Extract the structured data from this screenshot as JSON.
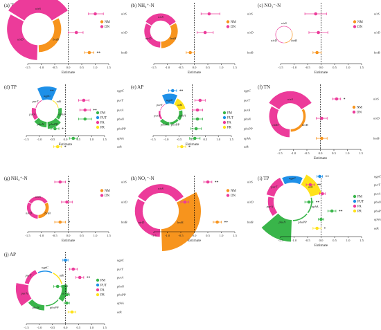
{
  "colors": {
    "NM": "#F7941D",
    "DN": "#EC3B9A",
    "PM": "#39B54A",
    "PUT": "#1E90E8",
    "PA": "#EC3B9A",
    "PR": "#FFE21A"
  },
  "chart_data": [
    {
      "type": "scatter",
      "panel": "a",
      "title": "(a) TN",
      "xlabel": "Estimate",
      "xlim": [
        -1.5,
        1.5
      ],
      "xticks": [
        "-1.5",
        "-1.0",
        "-0.5",
        "0.0",
        "0.5",
        "1.0",
        "1.5"
      ],
      "genes": [
        "nirS",
        "nirD",
        "betB"
      ],
      "legend": [
        {
          "name": "NM",
          "color": "#F7941D"
        },
        {
          "name": "DN",
          "color": "#EC3B9A"
        }
      ],
      "points": [
        {
          "gene": "nirS",
          "group": "DN",
          "est": 1.0,
          "lo": 0.75,
          "hi": 1.3,
          "sig": ""
        },
        {
          "gene": "nirD",
          "group": "DN",
          "est": 0.3,
          "lo": 0.0,
          "hi": 0.55,
          "sig": ""
        },
        {
          "gene": "betB",
          "group": "NM",
          "est": 0.78,
          "lo": 0.6,
          "hi": 0.95,
          "sig": "**"
        }
      ],
      "ring": [
        {
          "gene": "nirS",
          "group": "DN",
          "value": 0.95
        },
        {
          "gene": "betB",
          "group": "NM",
          "value": 0.35
        },
        {
          "gene": "nirD",
          "group": "DN",
          "value": 0.75
        }
      ]
    },
    {
      "type": "scatter",
      "panel": "b",
      "title": "(b) NH₄⁺-N",
      "xlabel": "Estimate",
      "xlim": [
        -1.5,
        1.5
      ],
      "xticks": [
        "-1.5",
        "-1.0",
        "-0.5",
        "0.0",
        "0.5",
        "1.0",
        "1.5"
      ],
      "genes": [
        "nirS",
        "nirD",
        "betB"
      ],
      "legend": [
        {
          "name": "NM",
          "color": "#F7941D"
        },
        {
          "name": "DN",
          "color": "#EC3B9A"
        }
      ],
      "points": [
        {
          "gene": "nirS",
          "group": "DN",
          "est": 0.55,
          "lo": 0.25,
          "hi": 0.95,
          "sig": ""
        },
        {
          "gene": "nirD",
          "group": "DN",
          "est": 0.4,
          "lo": 0.1,
          "hi": 0.7,
          "sig": ""
        },
        {
          "gene": "betB",
          "group": "NM",
          "est": -0.15,
          "lo": -0.3,
          "hi": 0.0,
          "sig": ""
        }
      ],
      "ring": [
        {
          "gene": "nirS",
          "group": "DN",
          "value": 0.55
        },
        {
          "gene": "betB",
          "group": "NM",
          "value": 0.5
        },
        {
          "gene": "nirD",
          "group": "DN",
          "value": 0.45
        }
      ]
    },
    {
      "type": "scatter",
      "panel": "c",
      "title": "(c) NO₃⁻-N",
      "xlabel": "Estimate",
      "xlim": [
        -1.5,
        1.5
      ],
      "xticks": [
        "-1.5",
        "-1.0",
        "-0.5",
        "0.0",
        "0.5",
        "1.0",
        "1.5"
      ],
      "genes": [
        "nirS",
        "nirD",
        "betB"
      ],
      "legend": [
        {
          "name": "NM",
          "color": "#F7941D"
        },
        {
          "name": "DN",
          "color": "#EC3B9A"
        }
      ],
      "points": [
        {
          "gene": "nirS",
          "group": "DN",
          "est": -0.2,
          "lo": -0.6,
          "hi": 0.2,
          "sig": ""
        },
        {
          "gene": "nirD",
          "group": "DN",
          "est": -0.1,
          "lo": -0.45,
          "hi": 0.25,
          "sig": ""
        },
        {
          "gene": "betB",
          "group": "NM",
          "est": -0.15,
          "lo": -0.3,
          "hi": 0.0,
          "sig": ""
        }
      ],
      "ring": [
        {
          "gene": "nirS",
          "group": "DN",
          "value": 0.05
        },
        {
          "gene": "betB",
          "group": "NM",
          "value": 0.05
        },
        {
          "gene": "nirD",
          "group": "DN",
          "value": 0.05
        }
      ]
    },
    {
      "type": "scatter",
      "panel": "d",
      "title": "(d) TP",
      "xlabel": "Estimate",
      "xlim": [
        -1.5,
        1.5
      ],
      "xticks": [
        "-1.5",
        "-1.0",
        "-0.5",
        "0.0",
        "0.5",
        "1.0",
        "1.5"
      ],
      "genes": [
        "ugpC",
        "purT",
        "purA",
        "phoN",
        "phoPP",
        "aphA",
        "adk"
      ],
      "legend": [
        {
          "name": "PM",
          "color": "#39B54A"
        },
        {
          "name": "PUT",
          "color": "#1E90E8"
        },
        {
          "name": "PA",
          "color": "#EC3B9A"
        },
        {
          "name": "PR",
          "color": "#FFE21A"
        }
      ],
      "points": [
        {
          "gene": "ugpC",
          "group": "PUT",
          "est": -0.85,
          "lo": -1.0,
          "hi": -0.7,
          "sig": "**"
        },
        {
          "gene": "purT",
          "group": "PA",
          "est": 0.7,
          "lo": 0.5,
          "hi": 0.9,
          "sig": ""
        },
        {
          "gene": "purA",
          "group": "PA",
          "est": 0.75,
          "lo": 0.55,
          "hi": 0.95,
          "sig": "**"
        },
        {
          "gene": "phoN",
          "group": "PM",
          "est": 0.75,
          "lo": 0.5,
          "hi": 1.0,
          "sig": ""
        },
        {
          "gene": "phoPP",
          "group": "PM",
          "est": -0.4,
          "lo": -0.55,
          "hi": -0.25,
          "sig": "*"
        },
        {
          "gene": "aphA",
          "group": "PM",
          "est": 0.3,
          "lo": 0.15,
          "hi": 0.45,
          "sig": ""
        },
        {
          "gene": "adk",
          "group": "PR",
          "est": -0.3,
          "lo": -0.45,
          "hi": -0.15,
          "sig": "*"
        }
      ],
      "ring": [
        {
          "gene": "ugpC",
          "group": "PUT",
          "value": 0.95
        },
        {
          "gene": "adk",
          "group": "PR",
          "value": 0.05
        },
        {
          "gene": "aphA",
          "group": "PM",
          "value": 0.25
        },
        {
          "gene": "phoPP",
          "group": "PM",
          "value": 0.5
        },
        {
          "gene": "phoN",
          "group": "PM",
          "value": 0.4
        },
        {
          "gene": "purA",
          "group": "PA",
          "value": 0.3
        },
        {
          "gene": "purT",
          "group": "PA",
          "value": 0.05
        }
      ]
    },
    {
      "type": "scatter",
      "panel": "e",
      "title": "(e) AP",
      "xlabel": "Estimate",
      "xlim": [
        -1.5,
        1.5
      ],
      "xticks": [
        "-1.5",
        "-1.0",
        "-0.5",
        "0.0",
        "0.5",
        "1.0",
        "1.5"
      ],
      "genes": [
        "ugpC",
        "purT",
        "purA",
        "phoN",
        "phoPP",
        "aphA",
        "adk"
      ],
      "legend": [
        {
          "name": "PM",
          "color": "#39B54A"
        },
        {
          "name": "PUT",
          "color": "#1E90E8"
        },
        {
          "name": "PA",
          "color": "#EC3B9A"
        },
        {
          "name": "PR",
          "color": "#FFE21A"
        }
      ],
      "points": [
        {
          "gene": "ugpC",
          "group": "PUT",
          "est": -0.75,
          "lo": -0.9,
          "hi": -0.6,
          "sig": "**"
        },
        {
          "gene": "purT",
          "group": "PA",
          "est": 0.3,
          "lo": 0.1,
          "hi": 0.5,
          "sig": ""
        },
        {
          "gene": "purA",
          "group": "PA",
          "est": 0.2,
          "lo": 0.0,
          "hi": 0.4,
          "sig": ""
        },
        {
          "gene": "phoN",
          "group": "PM",
          "est": 0.2,
          "lo": 0.0,
          "hi": 0.4,
          "sig": ""
        },
        {
          "gene": "phoPP",
          "group": "PM",
          "est": 0.15,
          "lo": -0.05,
          "hi": 0.35,
          "sig": ""
        },
        {
          "gene": "aphA",
          "group": "PM",
          "est": 0.1,
          "lo": -0.1,
          "hi": 0.3,
          "sig": ""
        },
        {
          "gene": "adk",
          "group": "PR",
          "est": -0.4,
          "lo": -0.55,
          "hi": -0.25,
          "sig": "*"
        }
      ],
      "ring": [
        {
          "gene": "ugpC",
          "group": "PUT",
          "value": 0.85
        },
        {
          "gene": "adk",
          "group": "PR",
          "value": 0.6
        },
        {
          "gene": "aphA",
          "group": "PM",
          "value": 0.3
        },
        {
          "gene": "phoPP",
          "group": "PM",
          "value": 0.2
        },
        {
          "gene": "phoN",
          "group": "PM",
          "value": 0.3
        },
        {
          "gene": "purA",
          "group": "PA",
          "value": 0.15
        },
        {
          "gene": "purT",
          "group": "PA",
          "value": 0.05
        }
      ]
    },
    {
      "type": "scatter",
      "panel": "f",
      "title": "(f) TN",
      "xlabel": "Estimate",
      "xlim": [
        -1.5,
        1.5
      ],
      "xticks": [
        "-1.5",
        "-1.0",
        "-0.5",
        "0.0",
        "0.5",
        "1.0",
        "1.5"
      ],
      "genes": [
        "nirS",
        "nirD",
        "betB"
      ],
      "legend": [
        {
          "name": "NM",
          "color": "#F7941D"
        },
        {
          "name": "DN",
          "color": "#EC3B9A"
        }
      ],
      "points": [
        {
          "gene": "nirS",
          "group": "DN",
          "est": 0.6,
          "lo": 0.45,
          "hi": 0.75,
          "sig": "*"
        },
        {
          "gene": "nirD",
          "group": "DN",
          "est": 0.05,
          "lo": -0.15,
          "hi": 0.25,
          "sig": ""
        },
        {
          "gene": "betB",
          "group": "NM",
          "est": 0.05,
          "lo": -0.15,
          "hi": 0.25,
          "sig": ""
        }
      ],
      "ring": [
        {
          "gene": "nirS",
          "group": "DN",
          "value": 0.75
        },
        {
          "gene": "betB",
          "group": "NM",
          "value": 0.15
        },
        {
          "gene": "nirD",
          "group": "DN",
          "value": 0.5
        }
      ]
    },
    {
      "type": "scatter",
      "panel": "g",
      "title": "(g) NH₄⁺-N",
      "xlabel": "Estimate",
      "xlim": [
        -1.5,
        1.5
      ],
      "xticks": [
        "-1.5",
        "-1.0",
        "-0.5",
        "0.0",
        "0.5",
        "1.0",
        "1.5"
      ],
      "genes": [
        "nirS",
        "nirD",
        "betB"
      ],
      "legend": [
        {
          "name": "NM",
          "color": "#F7941D"
        },
        {
          "name": "DN",
          "color": "#EC3B9A"
        }
      ],
      "points": [
        {
          "gene": "nirS",
          "group": "DN",
          "est": -0.3,
          "lo": -0.5,
          "hi": -0.1,
          "sig": "*"
        },
        {
          "gene": "nirD",
          "group": "DN",
          "est": -0.05,
          "lo": -0.25,
          "hi": 0.15,
          "sig": ""
        },
        {
          "gene": "betB",
          "group": "NM",
          "est": -0.3,
          "lo": -0.5,
          "hi": -0.1,
          "sig": "*"
        }
      ],
      "ring": [
        {
          "gene": "nirS",
          "group": "DN",
          "value": 0.4
        },
        {
          "gene": "betB",
          "group": "NM",
          "value": 0.35
        },
        {
          "gene": "nirD",
          "group": "DN",
          "value": 0.4
        }
      ]
    },
    {
      "type": "scatter",
      "panel": "h",
      "title": "(h) NO₃⁻-N",
      "xlabel": "Estimate",
      "xlim": [
        -1.5,
        1.5
      ],
      "xticks": [
        "-1.5",
        "-1.0",
        "-0.5",
        "0.0",
        "0.5",
        "1.0",
        "1.5"
      ],
      "genes": [
        "nirS",
        "nirD",
        "betB"
      ],
      "legend": [
        {
          "name": "NM",
          "color": "#F7941D"
        },
        {
          "name": "DN",
          "color": "#EC3B9A"
        }
      ],
      "points": [
        {
          "gene": "nirS",
          "group": "DN",
          "est": 0.5,
          "lo": 0.35,
          "hi": 0.65,
          "sig": "**"
        },
        {
          "gene": "nirD",
          "group": "DN",
          "est": -0.35,
          "lo": -0.5,
          "hi": -0.2,
          "sig": ""
        },
        {
          "gene": "betB",
          "group": "NM",
          "est": 0.85,
          "lo": 0.7,
          "hi": 1.0,
          "sig": "**"
        }
      ],
      "ring": [
        {
          "gene": "nirS",
          "group": "DN",
          "value": 0.4
        },
        {
          "gene": "betB",
          "group": "NM",
          "value": 1.0
        },
        {
          "gene": "nirD",
          "group": "DN",
          "value": 0.35
        }
      ]
    },
    {
      "type": "scatter",
      "panel": "i",
      "title": "(i) TP",
      "xlabel": "Estimate",
      "xlim": [
        -1.5,
        1.5
      ],
      "xticks": [
        "-1.5",
        "-1.0",
        "-0.5",
        "0.0",
        "0.5",
        "1.0",
        "1.5"
      ],
      "genes": [
        "ugpC",
        "purT",
        "purA",
        "phoN",
        "phoPP",
        "aphA",
        "adk"
      ],
      "legend": [
        {
          "name": "PM",
          "color": "#39B54A"
        },
        {
          "name": "PUT",
          "color": "#1E90E8"
        },
        {
          "name": "PA",
          "color": "#EC3B9A"
        },
        {
          "name": "PR",
          "color": "#FFE21A"
        }
      ],
      "points": [
        {
          "gene": "ugpC",
          "group": "PUT",
          "est": -0.05,
          "lo": -0.15,
          "hi": 0.05,
          "sig": "**"
        },
        {
          "gene": "purT",
          "group": "PA",
          "est": -0.4,
          "lo": -0.55,
          "hi": -0.25,
          "sig": "**"
        },
        {
          "gene": "purA",
          "group": "PA",
          "est": 0.05,
          "lo": -0.05,
          "hi": 0.15,
          "sig": ""
        },
        {
          "gene": "phoN",
          "group": "PM",
          "est": -0.45,
          "lo": -0.6,
          "hi": -0.3,
          "sig": "**"
        },
        {
          "gene": "phoPP",
          "group": "PM",
          "est": 0.4,
          "lo": 0.25,
          "hi": 0.55,
          "sig": "**"
        },
        {
          "gene": "aphA",
          "group": "PM",
          "est": 0.0,
          "lo": -0.1,
          "hi": 0.1,
          "sig": ""
        },
        {
          "gene": "adk",
          "group": "PR",
          "est": -0.15,
          "lo": -0.3,
          "hi": 0.0,
          "sig": "*"
        }
      ],
      "ring": [
        {
          "gene": "ugpC",
          "group": "PUT",
          "value": 0.3
        },
        {
          "gene": "adk",
          "group": "PR",
          "value": 0.5
        },
        {
          "gene": "aphA",
          "group": "PM",
          "value": 0.05
        },
        {
          "gene": "phoPP",
          "group": "PM",
          "value": 0.05
        },
        {
          "gene": "phoN",
          "group": "PM",
          "value": 0.95
        },
        {
          "gene": "purA",
          "group": "PA",
          "value": 0.25
        },
        {
          "gene": "purT",
          "group": "PA",
          "value": 0.35
        }
      ]
    },
    {
      "type": "scatter",
      "panel": "j",
      "title": "(j) AP",
      "xlabel": "Estimate",
      "xlim": [
        -1.5,
        1.5
      ],
      "xticks": [
        "-1.5",
        "-1.0",
        "-0.5",
        "0.0",
        "0.5",
        "1.0",
        "1.5"
      ],
      "genes": [
        "ugpC",
        "purT",
        "purA",
        "phoN",
        "phoPP",
        "aphA",
        "adk"
      ],
      "legend": [
        {
          "name": "PM",
          "color": "#39B54A"
        },
        {
          "name": "PUT",
          "color": "#1E90E8"
        },
        {
          "name": "PA",
          "color": "#EC3B9A"
        },
        {
          "name": "PR",
          "color": "#FFE21A"
        }
      ],
      "points": [
        {
          "gene": "ugpC",
          "group": "PUT",
          "est": 0.0,
          "lo": -0.1,
          "hi": 0.1,
          "sig": ""
        },
        {
          "gene": "purT",
          "group": "PA",
          "est": 0.3,
          "lo": 0.15,
          "hi": 0.45,
          "sig": ""
        },
        {
          "gene": "purA",
          "group": "PA",
          "est": 0.55,
          "lo": 0.4,
          "hi": 0.7,
          "sig": "**"
        },
        {
          "gene": "phoN",
          "group": "PM",
          "est": -0.3,
          "lo": -0.45,
          "hi": -0.15,
          "sig": "**"
        },
        {
          "gene": "phoPP",
          "group": "PM",
          "est": 0.05,
          "lo": -0.05,
          "hi": 0.15,
          "sig": ""
        },
        {
          "gene": "aphA",
          "group": "PM",
          "est": 0.05,
          "lo": -0.05,
          "hi": 0.15,
          "sig": ""
        },
        {
          "gene": "adk",
          "group": "PR",
          "est": 0.25,
          "lo": 0.1,
          "hi": 0.4,
          "sig": ""
        }
      ],
      "ring": [
        {
          "gene": "ugpC",
          "group": "PUT",
          "value": 0.05
        },
        {
          "gene": "adk",
          "group": "PR",
          "value": 0.05
        },
        {
          "gene": "aphA",
          "group": "PM",
          "value": 0.25
        },
        {
          "gene": "phoPP",
          "group": "PM",
          "value": 0.05
        },
        {
          "gene": "phoN",
          "group": "PM",
          "value": 0.25
        },
        {
          "gene": "purA",
          "group": "PA",
          "value": 0.6
        },
        {
          "gene": "purT",
          "group": "PA",
          "value": 0.2
        }
      ]
    }
  ]
}
